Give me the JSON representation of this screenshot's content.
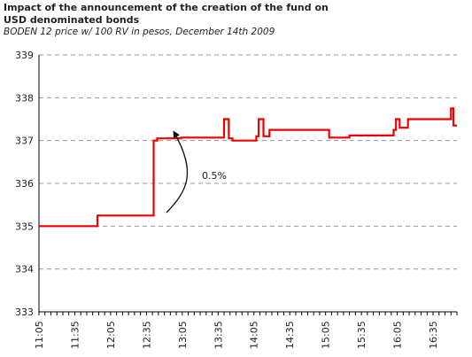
{
  "header": {
    "title_line1": "Impact of the announcement of the creation of the fund on",
    "title_line2": "USD denominated bonds",
    "subtitle": "BODEN 12 price w/ 100 RV in pesos, December 14th 2009"
  },
  "colors": {
    "series": "#ee0000",
    "axis": "#000000",
    "grid": "#999999",
    "annotation": "#111111"
  },
  "chart_data": {
    "type": "line",
    "title": "Impact of the announcement of the creation of the fund on USD denominated bonds",
    "subtitle": "BODEN 12 price w/ 100 RV in pesos, December 14th 2009",
    "xlabel": "",
    "ylabel": "",
    "xlim_minutes": [
      665,
      1015
    ],
    "ylim": [
      333,
      339
    ],
    "y_ticks": [
      333,
      334,
      335,
      336,
      337,
      338,
      339
    ],
    "x_tick_labels": [
      "11:05",
      "11:35",
      "12:05",
      "12:35",
      "13:05",
      "13:35",
      "14:05",
      "14:35",
      "15:05",
      "15:35",
      "16:05",
      "16:35"
    ],
    "x_tick_minutes": [
      665,
      695,
      725,
      755,
      785,
      815,
      845,
      875,
      905,
      935,
      965,
      995
    ],
    "grid": "horizontal dashed",
    "step": true,
    "series": [
      {
        "time_minutes": [
          665,
          688,
          714,
          726,
          746,
          761,
          764,
          784,
          819,
          820,
          824,
          827,
          837,
          844,
          847,
          849,
          853,
          858,
          875,
          908,
          911,
          915,
          925,
          935,
          955,
          962,
          964,
          967,
          974,
          982,
          997,
          998,
          1010,
          1012,
          1015
        ],
        "values": [
          335.0,
          335.0,
          335.25,
          335.25,
          335.25,
          337.0,
          337.05,
          337.07,
          337.07,
          337.5,
          337.05,
          337.0,
          337.0,
          337.0,
          337.1,
          337.5,
          337.1,
          337.25,
          337.25,
          337.07,
          337.07,
          337.07,
          337.12,
          337.12,
          337.12,
          337.25,
          337.5,
          337.3,
          337.5,
          337.5,
          337.5,
          337.5,
          337.75,
          337.35,
          337.35
        ]
      }
    ],
    "annotations": [
      {
        "text": "0.5%"
      }
    ]
  }
}
